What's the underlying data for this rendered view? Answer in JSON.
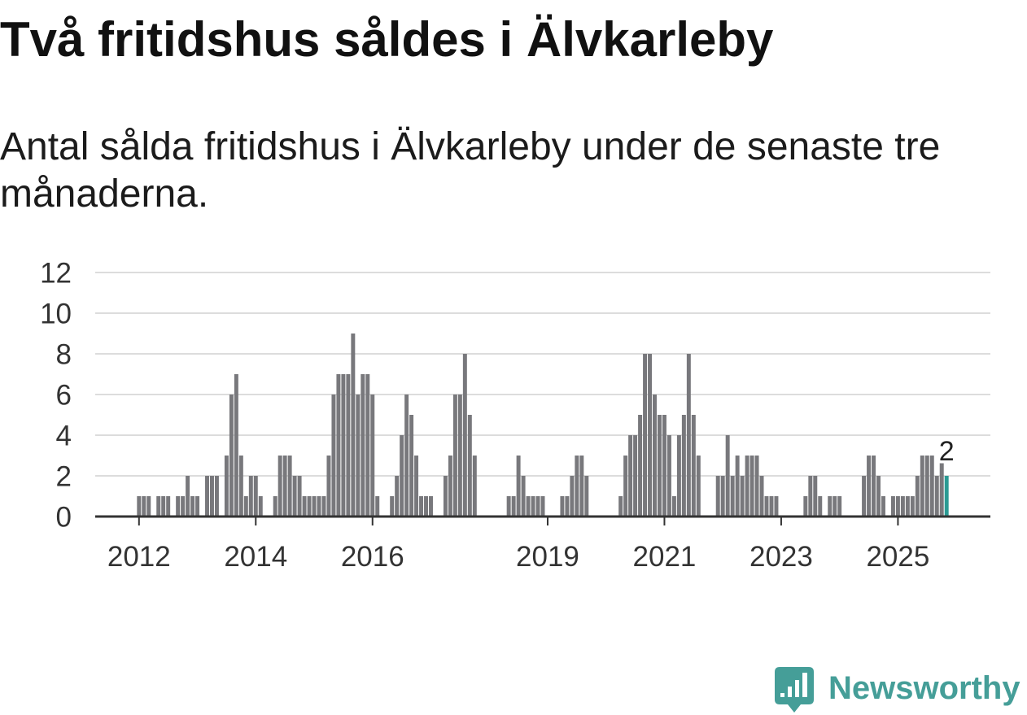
{
  "brand": {
    "name": "Newsworthy",
    "color": "#459e98",
    "icon": "bar-chart-bubble-icon"
  },
  "chart_data": {
    "type": "bar",
    "title": "Två fritidshus såldes i Älvkarleby",
    "subtitle": "Antal sålda fritidshus i Älvkarleby under de senaste tre månaderna.",
    "categories": [
      "2012-01",
      "2012-02",
      "2012-03",
      "2012-04",
      "2012-05",
      "2012-06",
      "2012-07",
      "2012-08",
      "2012-09",
      "2012-10",
      "2012-11",
      "2012-12",
      "2013-01",
      "2013-02",
      "2013-03",
      "2013-04",
      "2013-05",
      "2013-06",
      "2013-07",
      "2013-08",
      "2013-09",
      "2013-10",
      "2013-11",
      "2013-12",
      "2014-01",
      "2014-02",
      "2014-03",
      "2014-04",
      "2014-05",
      "2014-06",
      "2014-07",
      "2014-08",
      "2014-09",
      "2014-10",
      "2014-11",
      "2014-12",
      "2015-01",
      "2015-02",
      "2015-03",
      "2015-04",
      "2015-05",
      "2015-06",
      "2015-07",
      "2015-08",
      "2015-09",
      "2015-10",
      "2015-11",
      "2015-12",
      "2016-01",
      "2016-02",
      "2016-03",
      "2016-04",
      "2016-05",
      "2016-06",
      "2016-07",
      "2016-08",
      "2016-09",
      "2016-10",
      "2016-11",
      "2016-12",
      "2017-01",
      "2017-02",
      "2017-03",
      "2017-04",
      "2017-05",
      "2017-06",
      "2017-07",
      "2017-08",
      "2017-09",
      "2017-10",
      "2017-11",
      "2017-12",
      "2018-01",
      "2018-02",
      "2018-03",
      "2018-04",
      "2018-05",
      "2018-06",
      "2018-07",
      "2018-08",
      "2018-09",
      "2018-10",
      "2018-11",
      "2018-12",
      "2019-01",
      "2019-02",
      "2019-03",
      "2019-04",
      "2019-05",
      "2019-06",
      "2019-07",
      "2019-08",
      "2019-09",
      "2019-10",
      "2019-11",
      "2019-12",
      "2020-01",
      "2020-02",
      "2020-03",
      "2020-04",
      "2020-05",
      "2020-06",
      "2020-07",
      "2020-08",
      "2020-09",
      "2020-10",
      "2020-11",
      "2020-12",
      "2021-01",
      "2021-02",
      "2021-03",
      "2021-04",
      "2021-05",
      "2021-06",
      "2021-07",
      "2021-08",
      "2021-09",
      "2021-10",
      "2021-11",
      "2021-12",
      "2022-01",
      "2022-02",
      "2022-03",
      "2022-04",
      "2022-05",
      "2022-06",
      "2022-07",
      "2022-08",
      "2022-09",
      "2022-10",
      "2022-11",
      "2022-12",
      "2023-01",
      "2023-02",
      "2023-03",
      "2023-04",
      "2023-05",
      "2023-06",
      "2023-07",
      "2023-08",
      "2023-09",
      "2023-10",
      "2023-11",
      "2023-12",
      "2024-01",
      "2024-02",
      "2024-03",
      "2024-04",
      "2024-05",
      "2024-06",
      "2024-07",
      "2024-08",
      "2024-09",
      "2024-10",
      "2024-11",
      "2024-12",
      "2025-01",
      "2025-02",
      "2025-03",
      "2025-04",
      "2025-05",
      "2025-06",
      "2025-07",
      "2025-08",
      "2025-09",
      "2025-10",
      "2025-11"
    ],
    "values": [
      1,
      1,
      1,
      0,
      1,
      1,
      1,
      0,
      1,
      1,
      2,
      1,
      1,
      0,
      2,
      2,
      2,
      0,
      3,
      6,
      7,
      3,
      1,
      2,
      2,
      1,
      0,
      0,
      1,
      3,
      3,
      3,
      2,
      2,
      1,
      1,
      1,
      1,
      1,
      3,
      6,
      7,
      7,
      7,
      9,
      6,
      7,
      7,
      6,
      1,
      0,
      0,
      1,
      2,
      4,
      6,
      5,
      3,
      1,
      1,
      1,
      0,
      0,
      2,
      3,
      6,
      6,
      8,
      5,
      3,
      0,
      0,
      0,
      0,
      0,
      0,
      1,
      1,
      3,
      2,
      1,
      1,
      1,
      1,
      0,
      0,
      0,
      1,
      1,
      2,
      3,
      3,
      2,
      0,
      0,
      0,
      0,
      0,
      0,
      1,
      3,
      4,
      4,
      5,
      8,
      8,
      6,
      5,
      5,
      4,
      1,
      4,
      5,
      8,
      5,
      3,
      0,
      0,
      0,
      2,
      2,
      4,
      2,
      3,
      2,
      3,
      3,
      3,
      2,
      1,
      1,
      1,
      0,
      0,
      0,
      0,
      0,
      1,
      2,
      2,
      1,
      0,
      1,
      1,
      1,
      0,
      0,
      0,
      0,
      2,
      3,
      3,
      2,
      1,
      0,
      1,
      1,
      1,
      1,
      1,
      2,
      3,
      3,
      3,
      2,
      3,
      2
    ],
    "ylim": [
      0,
      12
    ],
    "y_ticks": [
      0,
      2,
      4,
      6,
      8,
      10,
      12
    ],
    "xlim": [
      "2011-04",
      "2026-08"
    ],
    "x_ticks": [
      {
        "label": "2012",
        "at": "2012-01"
      },
      {
        "label": "2014",
        "at": "2014-01"
      },
      {
        "label": "2016",
        "at": "2016-01"
      },
      {
        "label": "2019",
        "at": "2019-01"
      },
      {
        "label": "2021",
        "at": "2021-01"
      },
      {
        "label": "2023",
        "at": "2023-01"
      },
      {
        "label": "2025",
        "at": "2025-01"
      }
    ],
    "grid": true,
    "bar_color": "#78787c",
    "highlight": {
      "category": "2025-11",
      "label": "2",
      "color": "#2a9a93"
    }
  }
}
